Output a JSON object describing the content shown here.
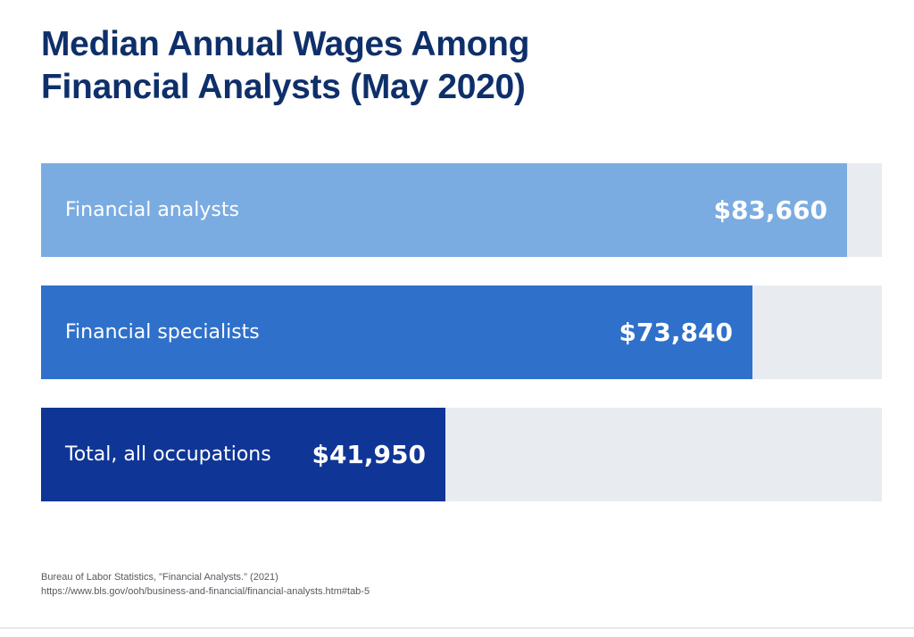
{
  "title_lines": [
    "Median Annual Wages Among",
    "Financial Analysts (May 2020)"
  ],
  "chart_data": {
    "type": "bar",
    "orientation": "horizontal",
    "categories": [
      "Financial analysts",
      "Financial specialists",
      "Total, all occupations"
    ],
    "values": [
      83660,
      73840,
      41950
    ],
    "value_labels": [
      "$83,660",
      "$73,840",
      "$41,950"
    ],
    "colors": [
      "#7aace2",
      "#2f70cb",
      "#0f3596"
    ],
    "track_color": "#e8ecf0",
    "xlim": [
      0,
      87250
    ],
    "grid": false,
    "legend": "none"
  },
  "source": {
    "citation": "Bureau of Labor Statistics, \"Financial Analysts.\" (2021)",
    "url": "https://www.bls.gov/ooh/business-and-financial/financial-analysts.htm#tab-5"
  }
}
